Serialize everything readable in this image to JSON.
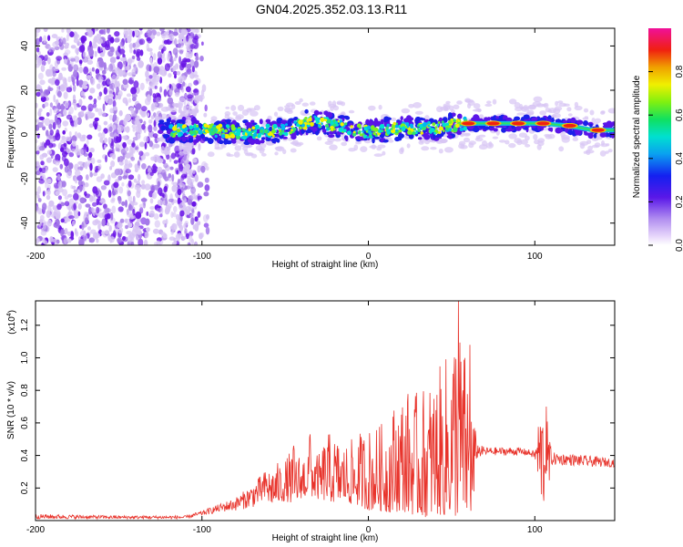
{
  "title": "GN04.2025.352.03.13.R11",
  "colors": {
    "trace": "#e8342c",
    "axis": "#000000",
    "scatter_light": "#d7c4f4",
    "scatter_mid": "#a57ae8",
    "scatter_dark": "#6a14e6"
  },
  "chart_data": [
    {
      "type": "heatmap",
      "name": "spectrogram",
      "xlabel": "Height of straight line (km)",
      "ylabel": "Frequency (Hz)",
      "xlim": [
        -200,
        148
      ],
      "ylim": [
        -50,
        48
      ],
      "xticks": [
        -200,
        -100,
        0,
        100
      ],
      "xtick_labels": [
        "-200",
        "-100",
        "0",
        "100"
      ],
      "yticks": [
        40,
        20,
        0,
        -20,
        -40
      ],
      "ytick_labels": [
        "40",
        "20",
        "0",
        "-20",
        "-40"
      ],
      "noise_region_x": [
        -200,
        -103
      ],
      "ridge": {
        "start_x": -125,
        "end_x": 148,
        "description_points": [
          [
            -125,
            2
          ],
          [
            -100,
            2
          ],
          [
            -75,
            1
          ],
          [
            -50,
            2
          ],
          [
            -35,
            6
          ],
          [
            -20,
            4
          ],
          [
            0,
            1
          ],
          [
            20,
            3
          ],
          [
            40,
            3
          ],
          [
            60,
            5
          ],
          [
            75,
            5
          ],
          [
            90,
            5
          ],
          [
            105,
            5
          ],
          [
            120,
            4
          ],
          [
            135,
            2
          ],
          [
            148,
            2
          ]
        ]
      },
      "colorbar": {
        "label": "Normalized spectral amplitude",
        "range": [
          0,
          1
        ],
        "ticks": [
          0.0,
          0.2,
          0.4,
          0.6,
          0.8
        ],
        "tick_labels": [
          "0.0",
          "0.2",
          "0.4",
          "0.6",
          "0.8"
        ]
      }
    },
    {
      "type": "line",
      "name": "snr",
      "xlabel": "Height of straight line (km)",
      "ylabel": "SNR (10 * v/v)",
      "y_multiplier_label": "(x10",
      "y_multiplier_exp": "4",
      "y_multiplier_close": ")",
      "xlim": [
        -200,
        148
      ],
      "ylim": [
        0,
        1.35
      ],
      "xticks": [
        -200,
        -100,
        0,
        100
      ],
      "xtick_labels": [
        "-200",
        "-100",
        "0",
        "100"
      ],
      "yticks": [
        0.2,
        0.4,
        0.6,
        0.8,
        1.0,
        1.2
      ],
      "ytick_labels": [
        "0.2",
        "0.4",
        "0.6",
        "0.8",
        "1.0",
        "1.2"
      ],
      "envelope": {
        "x": [
          -200,
          -150,
          -110,
          -100,
          -90,
          -80,
          -70,
          -60,
          -50,
          -45,
          -40,
          -35,
          -30,
          -25,
          -20,
          -15,
          -10,
          -5,
          0,
          5,
          10,
          15,
          20,
          25,
          30,
          35,
          40,
          45,
          50,
          53,
          55,
          60,
          63,
          65,
          70,
          80,
          90,
          95,
          100,
          103,
          105,
          108,
          110,
          120,
          130,
          140,
          148
        ],
        "low": [
          0.01,
          0.01,
          0.01,
          0.03,
          0.05,
          0.06,
          0.08,
          0.1,
          0.12,
          0.1,
          0.14,
          0.15,
          0.13,
          0.12,
          0.11,
          0.12,
          0.1,
          0.09,
          0.06,
          0.07,
          0.05,
          0.05,
          0.06,
          0.04,
          0.03,
          0.02,
          0.04,
          0.03,
          0.03,
          0.02,
          0.04,
          0.03,
          0.05,
          0.38,
          0.4,
          0.4,
          0.4,
          0.4,
          0.38,
          0.1,
          0.06,
          0.1,
          0.34,
          0.34,
          0.33,
          0.33,
          0.33
        ],
        "high": [
          0.04,
          0.03,
          0.03,
          0.06,
          0.1,
          0.14,
          0.22,
          0.33,
          0.38,
          0.46,
          0.4,
          0.53,
          0.4,
          0.55,
          0.52,
          0.48,
          0.5,
          0.55,
          0.58,
          0.58,
          0.62,
          0.72,
          0.8,
          0.82,
          0.78,
          0.85,
          0.9,
          0.98,
          1.1,
          1.35,
          1.2,
          0.95,
          0.7,
          0.48,
          0.45,
          0.45,
          0.45,
          0.44,
          0.43,
          0.7,
          0.68,
          0.6,
          0.42,
          0.41,
          0.4,
          0.39,
          0.38
        ]
      },
      "peaks": [
        [
          54,
          1.35
        ],
        [
          107,
          0.7
        ],
        [
          61,
          1.08
        ],
        [
          -35,
          0.53
        ],
        [
          -45,
          0.46
        ]
      ]
    }
  ]
}
